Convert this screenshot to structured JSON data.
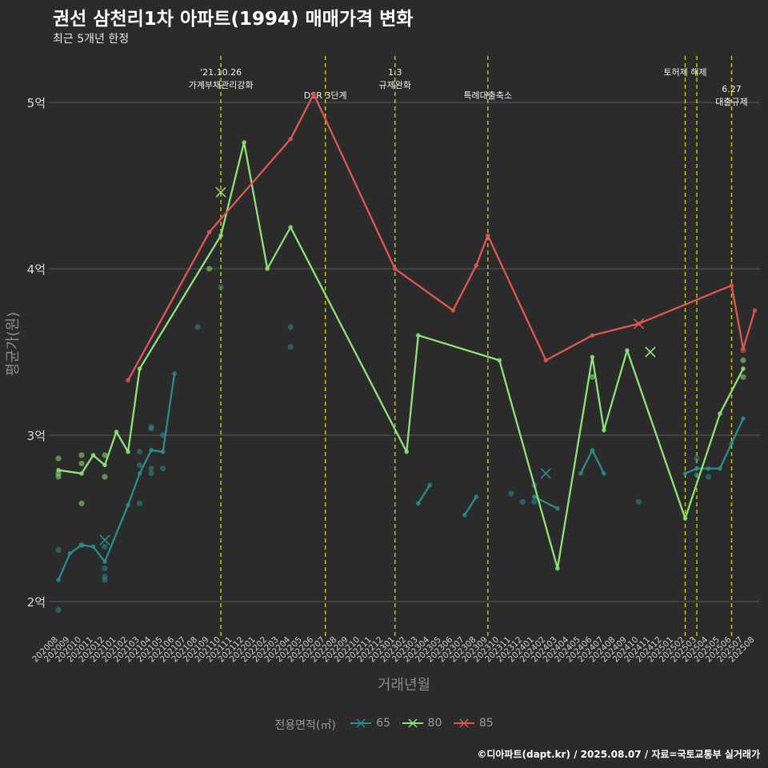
{
  "title": "권선 삼천리1차 아파트(1994) 매매가격 변화",
  "subtitle": "최근 5개년 한정",
  "caption": "©디아파트(dapt.kr) / 2025.08.07 / 자료=국토교통부 실거래가",
  "chart_data": {
    "type": "line",
    "title": "권선 삼천리1차 아파트(1994) 매매가격 변화",
    "subtitle": "최근 5개년 한정",
    "xlabel": "거래년월",
    "ylabel": "평균가(원)",
    "ylim": [
      1.8,
      5.4
    ],
    "yticks": [
      {
        "value": 2,
        "label": "2억"
      },
      {
        "value": 3,
        "label": "3억"
      },
      {
        "value": 4,
        "label": "4억"
      },
      {
        "value": 5,
        "label": "5억"
      }
    ],
    "grid": true,
    "legend": {
      "title": "전용면적(㎡)",
      "position": "bottom"
    },
    "categories": [
      "202008",
      "202009",
      "202010",
      "202011",
      "202012",
      "202101",
      "202102",
      "202103",
      "202104",
      "202105",
      "202106",
      "202107",
      "202108",
      "202109",
      "202110",
      "202111",
      "202112",
      "202201",
      "202202",
      "202203",
      "202204",
      "202205",
      "202206",
      "202207",
      "202208",
      "202209",
      "202210",
      "202211",
      "202212",
      "202301",
      "202302",
      "202303",
      "202304",
      "202305",
      "202306",
      "202307",
      "202308",
      "202309",
      "202310",
      "202311",
      "202312",
      "202401",
      "202402",
      "202403",
      "202404",
      "202405",
      "202406",
      "202407",
      "202408",
      "202409",
      "202410",
      "202411",
      "202412",
      "202501",
      "202502",
      "202503",
      "202504",
      "202505",
      "202506",
      "202507",
      "202508"
    ],
    "series": [
      {
        "name": "65",
        "color": "#2a8c8c",
        "lines": [
          [
            [
              "202008",
              2.13
            ],
            [
              "202009",
              2.29
            ],
            [
              "202010",
              2.34
            ],
            [
              "202011",
              2.33
            ],
            [
              "202012",
              2.24
            ],
            [
              "202102",
              2.58
            ],
            [
              "202103",
              2.77
            ],
            [
              "202104",
              2.91
            ],
            [
              "202105",
              2.9
            ],
            [
              "202106",
              3.37
            ]
          ],
          [
            [
              "202303",
              2.59
            ],
            [
              "202304",
              2.7
            ]
          ],
          [
            [
              "202307",
              2.52
            ],
            [
              "202308",
              2.63
            ]
          ],
          [
            [
              "202401",
              2.63
            ],
            [
              "202403",
              2.56
            ]
          ],
          [
            [
              "202405",
              2.77
            ],
            [
              "202406",
              2.91
            ],
            [
              "202407",
              2.77
            ]
          ],
          [
            [
              "202502",
              2.77
            ],
            [
              "202503",
              2.8
            ],
            [
              "202504",
              2.8
            ],
            [
              "202505",
              2.8
            ],
            [
              "202506",
              2.95
            ],
            [
              "202507",
              3.1
            ]
          ]
        ],
        "points": [
          [
            "202008",
            1.95
          ],
          [
            "202008",
            2.31
          ],
          [
            "202010",
            2.34
          ],
          [
            "202012",
            2.13
          ],
          [
            "202012",
            2.15
          ],
          [
            "202012",
            2.2
          ],
          [
            "202012",
            2.33
          ],
          [
            "202103",
            2.59
          ],
          [
            "202103",
            2.82
          ],
          [
            "202103",
            2.9
          ],
          [
            "202104",
            2.8
          ],
          [
            "202104",
            2.77
          ],
          [
            "202104",
            3.04
          ],
          [
            "202104",
            3.05
          ],
          [
            "202105",
            2.8
          ],
          [
            "202105",
            3.0
          ],
          [
            "202108",
            3.65
          ],
          [
            "202110",
            3.89
          ],
          [
            "202204",
            3.65
          ],
          [
            "202204",
            3.53
          ],
          [
            "202311",
            2.65
          ],
          [
            "202312",
            2.6
          ],
          [
            "202401",
            2.6
          ],
          [
            "202401",
            2.7
          ],
          [
            "202410",
            2.6
          ],
          [
            "202503",
            2.76
          ],
          [
            "202503",
            2.86
          ],
          [
            "202504",
            2.75
          ]
        ],
        "markers_x": [
          [
            "202012",
            2.37
          ],
          [
            "202402",
            2.77
          ]
        ]
      },
      {
        "name": "80",
        "color": "#8fe27a",
        "lines": [
          [
            [
              "202008",
              2.79
            ],
            [
              "202010",
              2.77
            ],
            [
              "202011",
              2.88
            ],
            [
              "202012",
              2.82
            ],
            [
              "202101",
              3.02
            ],
            [
              "202102",
              2.9
            ],
            [
              "202103",
              3.4
            ],
            [
              "202110",
              4.2
            ],
            [
              "202112",
              4.76
            ],
            [
              "202202",
              4.0
            ],
            [
              "202204",
              4.25
            ],
            [
              "202302",
              2.9
            ],
            [
              "202303",
              3.6
            ],
            [
              "202310",
              3.45
            ],
            [
              "202403",
              2.2
            ],
            [
              "202406",
              3.47
            ],
            [
              "202407",
              3.03
            ],
            [
              "202409",
              3.51
            ],
            [
              "202502",
              2.5
            ],
            [
              "202505",
              3.13
            ],
            [
              "202507",
              3.4
            ]
          ]
        ],
        "points": [
          [
            "202008",
            2.75
          ],
          [
            "202008",
            2.77
          ],
          [
            "202008",
            2.86
          ],
          [
            "202010",
            2.59
          ],
          [
            "202010",
            2.83
          ],
          [
            "202010",
            2.88
          ],
          [
            "202012",
            2.75
          ],
          [
            "202012",
            2.88
          ],
          [
            "202109",
            4.0
          ],
          [
            "202406",
            3.35
          ],
          [
            "202507",
            3.35
          ],
          [
            "202507",
            3.45
          ]
        ],
        "markers_x": [
          [
            "202110",
            4.46
          ],
          [
            "202411",
            3.5
          ]
        ]
      },
      {
        "name": "85",
        "color": "#e05555",
        "lines": [
          [
            [
              "202102",
              3.33
            ],
            [
              "202109",
              4.22
            ],
            [
              "202204",
              4.78
            ],
            [
              "202206",
              5.05
            ],
            [
              "202301",
              4.0
            ],
            [
              "202306",
              3.75
            ],
            [
              "202308",
              4.02
            ],
            [
              "202309",
              4.2
            ],
            [
              "202402",
              3.45
            ],
            [
              "202406",
              3.6
            ],
            [
              "202410",
              3.67
            ],
            [
              "202506",
              3.9
            ],
            [
              "202507",
              3.52
            ],
            [
              "202508",
              3.75
            ]
          ]
        ],
        "points": [
          [
            "202507",
            3.51
          ]
        ],
        "markers_x": [
          [
            "202410",
            3.67
          ]
        ]
      }
    ],
    "annotations": [
      {
        "x": "202110",
        "lines": [
          "'21.10.26",
          "가계부채관리강화"
        ],
        "level": 0
      },
      {
        "x": "202207",
        "lines": [
          "DSR 3단계"
        ],
        "level": 1
      },
      {
        "x": "202301",
        "lines": [
          "1.3",
          "규제완화"
        ],
        "level": 0
      },
      {
        "x": "202309",
        "lines": [
          "특례대출축소"
        ],
        "level": 1
      },
      {
        "x": "202502",
        "lines": [
          "토허제 해제"
        ],
        "level": 0
      },
      {
        "x": "202503",
        "lines": [],
        "level": 0
      },
      {
        "x": "202506",
        "lines": [
          "6.27",
          "대출규제"
        ],
        "level": 0.6
      }
    ]
  }
}
